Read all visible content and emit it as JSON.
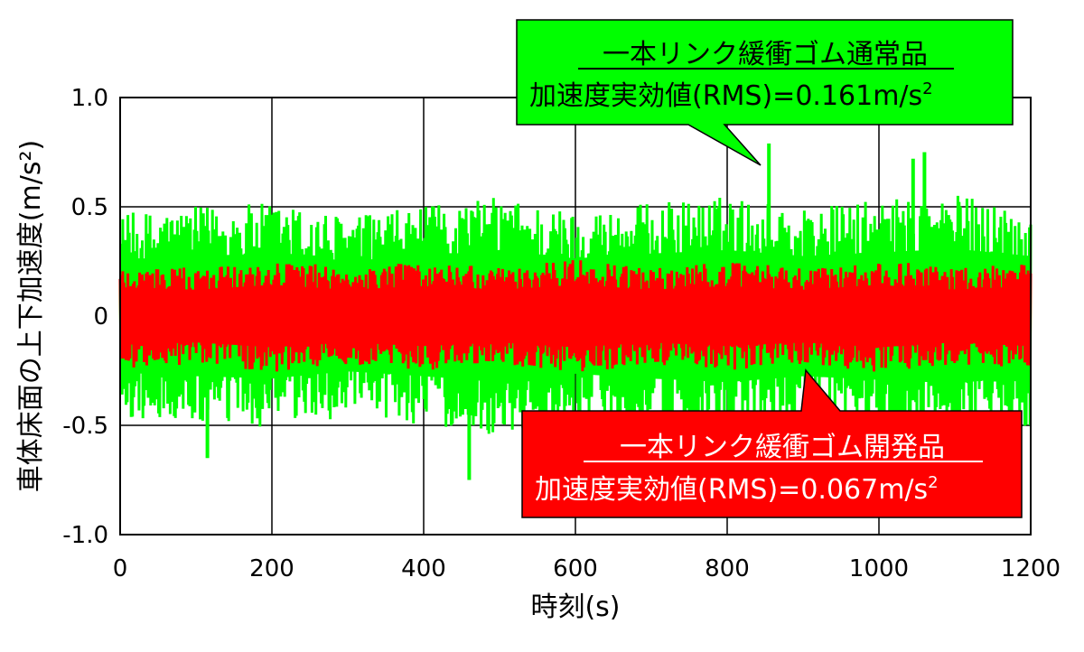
{
  "chart_data": {
    "type": "line",
    "xlabel": "時刻(s)",
    "ylabel": "車体床面の上下加速度(m/s²)",
    "xlim": [
      0,
      1200
    ],
    "ylim": [
      -1.0,
      1.0
    ],
    "x_ticks": [
      "0",
      "200",
      "400",
      "600",
      "800",
      "1000",
      "1200"
    ],
    "y_ticks": [
      "1.0",
      "0.5",
      "0",
      "-0.5",
      "-1.0"
    ],
    "grid": true,
    "series": [
      {
        "name": "一本リンク緩衝ゴム通常品",
        "color": "#00ff00",
        "rms_label": "加速度実効値(RMS)=0.161m/s²",
        "envelope": {
          "x": [
            0,
            100,
            200,
            300,
            400,
            500,
            600,
            700,
            800,
            900,
            1000,
            1100,
            1200
          ],
          "amp": [
            0.47,
            0.5,
            0.52,
            0.46,
            0.5,
            0.55,
            0.48,
            0.52,
            0.55,
            0.5,
            0.53,
            0.56,
            0.5
          ]
        },
        "peaks": [
          {
            "x": 855,
            "y": 0.79
          },
          {
            "x": 1060,
            "y": 0.75
          },
          {
            "x": 460,
            "y": -0.75
          },
          {
            "x": 115,
            "y": -0.65
          },
          {
            "x": 1045,
            "y": 0.72
          }
        ]
      },
      {
        "name": "一本リンク緩衝ゴム開発品",
        "color": "#ff0000",
        "rms_label": "加速度実効値(RMS)=0.067m/s²",
        "envelope": {
          "x": [
            0,
            100,
            200,
            300,
            400,
            500,
            600,
            700,
            800,
            900,
            1000,
            1100,
            1200
          ],
          "amp": [
            0.24,
            0.22,
            0.26,
            0.22,
            0.25,
            0.22,
            0.26,
            0.22,
            0.25,
            0.22,
            0.26,
            0.22,
            0.25
          ]
        },
        "peaks": []
      }
    ]
  },
  "callouts": {
    "green": {
      "title": "一本リンク緩衝ゴム通常品",
      "rms_prefix": "加速度実効値(RMS)=0.161m/s",
      "rms_sup": "2"
    },
    "red": {
      "title": "一本リンク緩衝ゴム開発品",
      "rms_prefix": "加速度実効値(RMS)=0.067m/s",
      "rms_sup": "2"
    }
  },
  "colors": {
    "green": "#00ff00",
    "red": "#ff0000",
    "callout_border": "#000000"
  }
}
